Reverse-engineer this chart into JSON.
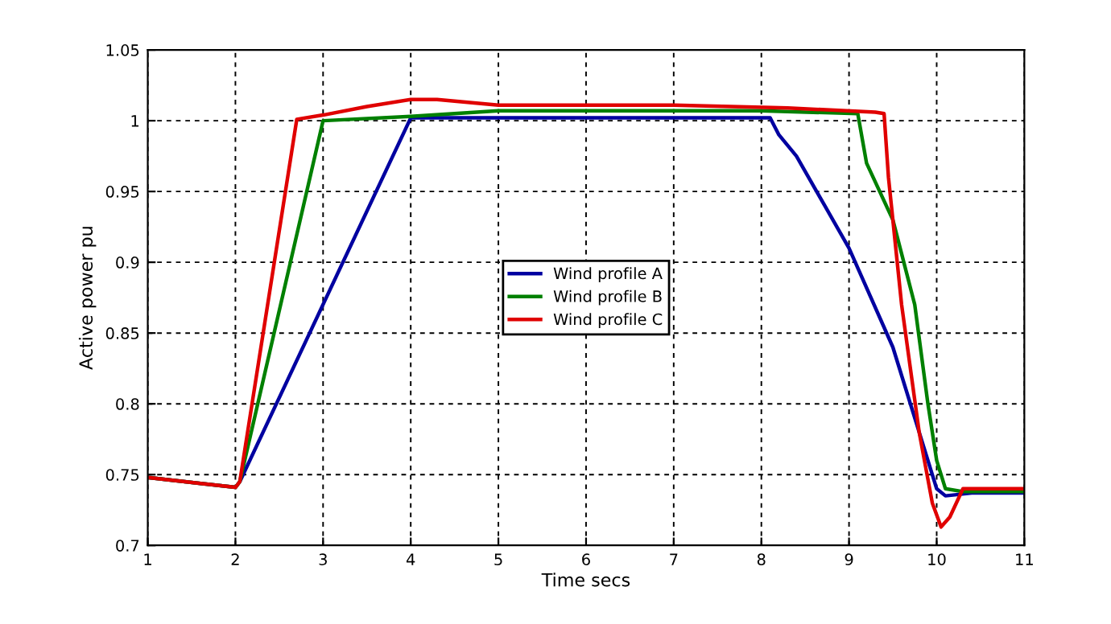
{
  "chart_data": {
    "type": "line",
    "xlabel": "Time secs",
    "ylabel": "Active power pu",
    "xlim": [
      1,
      11
    ],
    "xticks": [
      1,
      2,
      3,
      4,
      5,
      6,
      7,
      8,
      9,
      10,
      11
    ],
    "ylim": [
      0.7,
      1.05
    ],
    "yticks": [
      0.7,
      0.75,
      0.8,
      0.85,
      0.9,
      0.95,
      1,
      1.05
    ],
    "grid": true,
    "legend": "center",
    "line_style": "solid",
    "marker": "none",
    "series": [
      {
        "name": "Wind profile A",
        "color": "#0000a0",
        "x": [
          1,
          2,
          2.05,
          4,
          8.1,
          8.2,
          8.4,
          9,
          9.5,
          9.8,
          10,
          10.1,
          10.4,
          11
        ],
        "values": [
          0.748,
          0.741,
          0.745,
          1.002,
          1.002,
          0.99,
          0.975,
          0.91,
          0.84,
          0.78,
          0.74,
          0.735,
          0.737,
          0.737
        ]
      },
      {
        "name": "Wind profile B",
        "color": "#008000",
        "x": [
          1,
          2,
          2.05,
          3,
          4,
          5,
          8,
          9.1,
          9.2,
          9.5,
          9.75,
          9.9,
          10,
          10.1,
          10.3,
          11
        ],
        "values": [
          0.748,
          0.741,
          0.745,
          1.0,
          1.003,
          1.007,
          1.007,
          1.005,
          0.97,
          0.93,
          0.87,
          0.8,
          0.76,
          0.74,
          0.738,
          0.738
        ]
      },
      {
        "name": "Wind profile C",
        "color": "#e00000",
        "x": [
          1,
          2,
          2.05,
          2.7,
          3,
          3.5,
          4,
          4.3,
          5,
          7,
          8.3,
          9.3,
          9.4,
          9.45,
          9.6,
          9.8,
          9.95,
          10.05,
          10.15,
          10.3,
          11
        ],
        "values": [
          0.748,
          0.741,
          0.745,
          1.001,
          1.004,
          1.01,
          1.015,
          1.015,
          1.011,
          1.011,
          1.009,
          1.006,
          1.005,
          0.96,
          0.87,
          0.78,
          0.73,
          0.713,
          0.72,
          0.74,
          0.74
        ]
      }
    ]
  }
}
